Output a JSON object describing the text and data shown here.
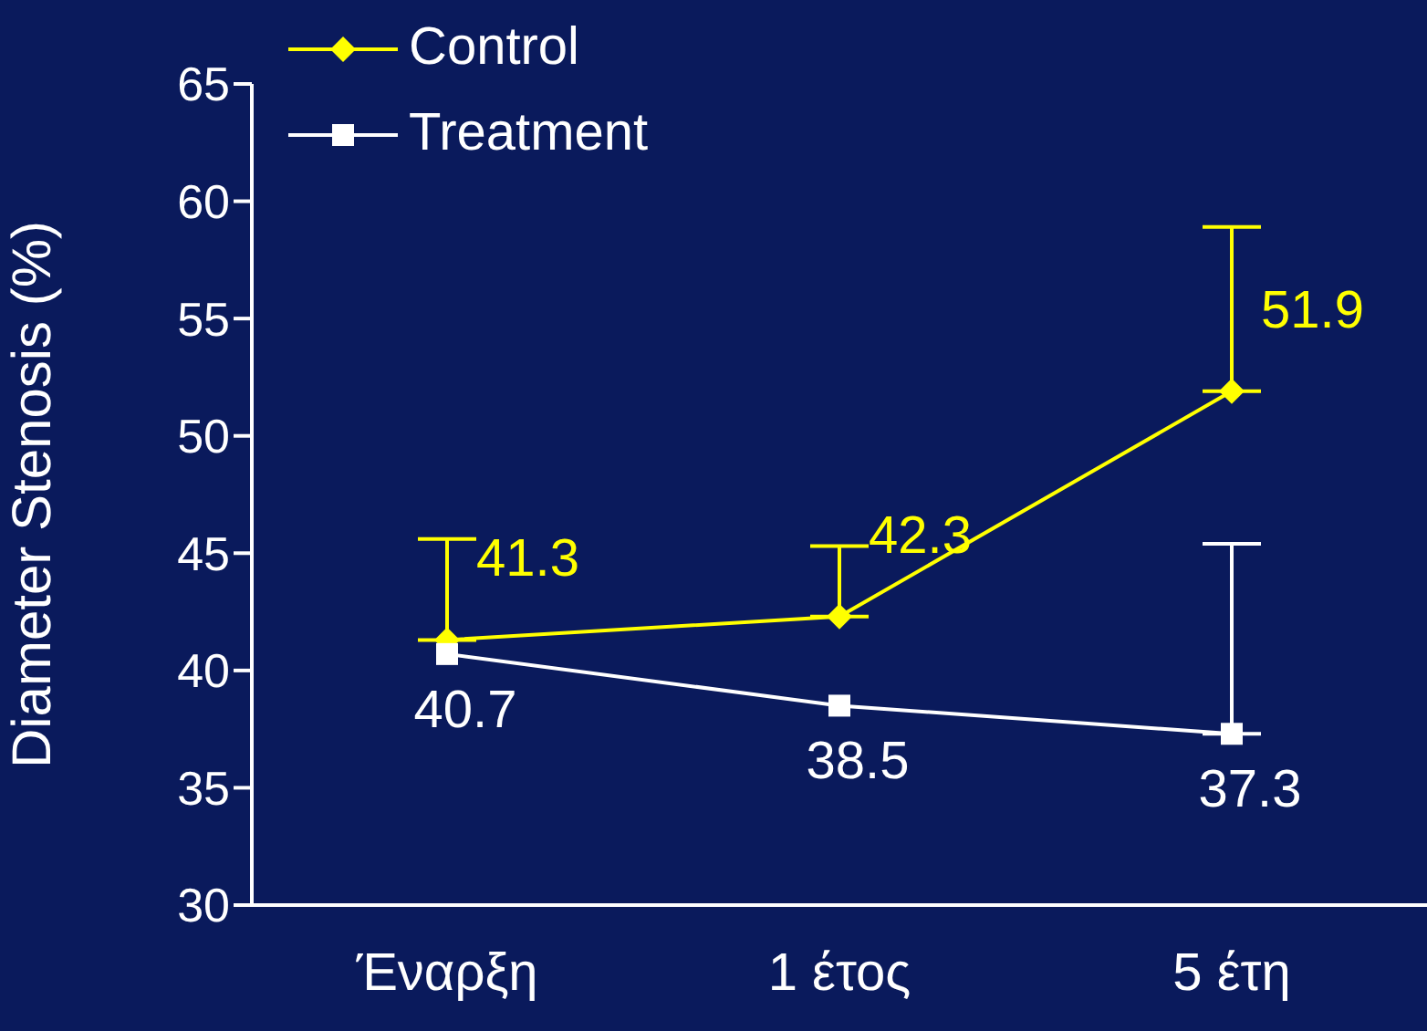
{
  "chart_data": {
    "type": "line",
    "ylabel": "Diameter Stenosis (%)",
    "categories": [
      "Έναρξη",
      "1 έτος",
      "5 έτη"
    ],
    "ylim": [
      30,
      65
    ],
    "yticks": [
      30,
      35,
      40,
      45,
      50,
      55,
      60,
      65
    ],
    "grid": false,
    "legend": "top left",
    "data_labels": true,
    "series": [
      {
        "name": "Control",
        "color": "#ffff00",
        "marker": "diamond",
        "values": [
          41.3,
          42.3,
          51.9
        ],
        "errors": [
          [
            41.3,
            45.6
          ],
          [
            42.3,
            45.3
          ],
          [
            51.9,
            58.9
          ]
        ]
      },
      {
        "name": "Treatment",
        "color": "#ffffff",
        "marker": "square",
        "values": [
          40.7,
          38.5,
          37.3
        ],
        "errors": [
          null,
          null,
          [
            37.3,
            45.4
          ]
        ]
      }
    ]
  }
}
